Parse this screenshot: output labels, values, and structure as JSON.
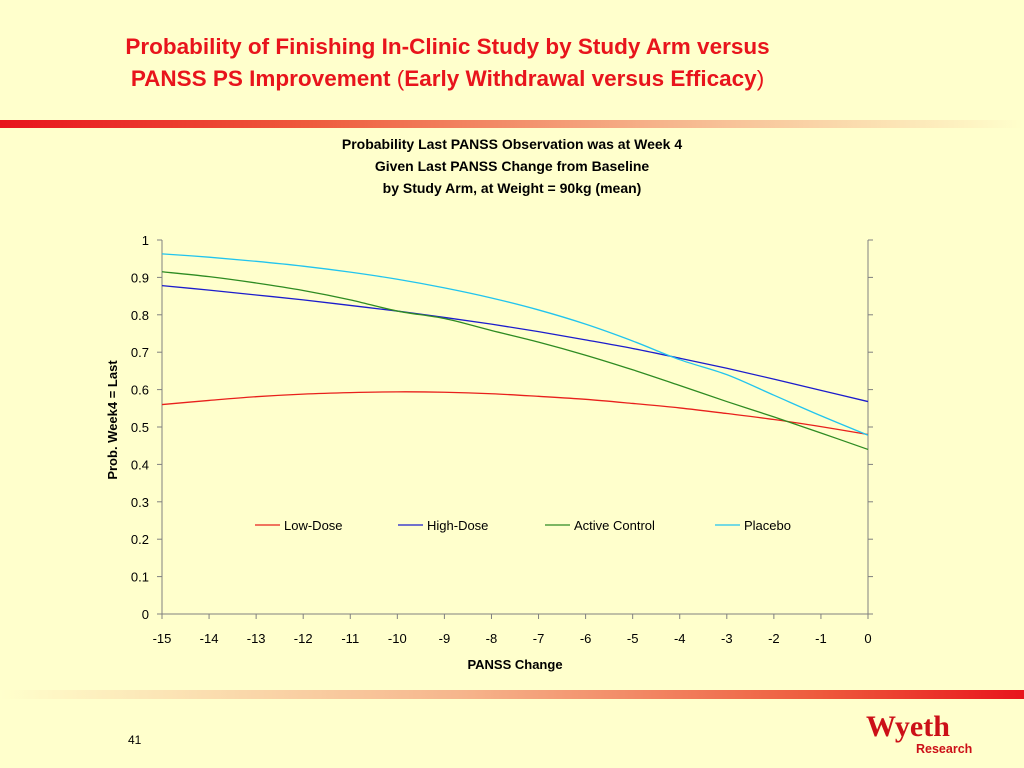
{
  "slide": {
    "title_line1": "Probability of Finishing In-Clinic Study by Study Arm versus",
    "title_line2_main": "PANSS PS Improvement",
    "title_line2_open": "(",
    "title_line2_paren": "Early Withdrawal versus Efficacy",
    "title_line2_close": ")",
    "page_number": "41",
    "logo_text": "Wyeth",
    "logo_subtext": "Research",
    "colors": {
      "title": "#E8141C",
      "background": "#FFFFCC",
      "logo": "#CC1018"
    }
  },
  "chart_data": {
    "type": "line",
    "title_lines": [
      "Probability Last PANSS Observation was at Week 4",
      "Given Last PANSS Change from Baseline",
      "by Study Arm, at Weight = 90kg (mean)"
    ],
    "xlabel": "PANSS Change",
    "ylabel": "Prob. Week4 = Last",
    "xlim": [
      -15,
      0
    ],
    "ylim": [
      0,
      1
    ],
    "x_ticks": [
      -15,
      -14,
      -13,
      -12,
      -11,
      -10,
      -9,
      -8,
      -7,
      -6,
      -5,
      -4,
      -3,
      -2,
      -1,
      0
    ],
    "y_ticks": [
      0,
      0.1,
      0.2,
      0.3,
      0.4,
      0.5,
      0.6,
      0.7,
      0.8,
      0.9,
      1
    ],
    "y_tick_labels": [
      "0",
      "0.1",
      "0.2",
      "0.3",
      "0.4",
      "0.5",
      "0.6",
      "0.7",
      "0.8",
      "0.9",
      "1"
    ],
    "x": [
      -15,
      -14,
      -13,
      -12,
      -11,
      -10,
      -9,
      -8,
      -7,
      -6,
      -5,
      -4,
      -3,
      -2,
      -1,
      0
    ],
    "grid": false,
    "legend_position": "inside-lower-center",
    "series": [
      {
        "name": "Low-Dose",
        "color": "#E8201C",
        "values": [
          0.56,
          0.571,
          0.581,
          0.588,
          0.592,
          0.594,
          0.593,
          0.589,
          0.582,
          0.574,
          0.563,
          0.551,
          0.536,
          0.52,
          0.501,
          0.48
        ]
      },
      {
        "name": "High-Dose",
        "color": "#1C1CCC",
        "values": [
          0.878,
          0.866,
          0.853,
          0.84,
          0.825,
          0.81,
          0.793,
          0.775,
          0.755,
          0.733,
          0.71,
          0.684,
          0.657,
          0.628,
          0.598,
          0.568
        ]
      },
      {
        "name": "Active Control",
        "color": "#2E8B22",
        "values": [
          0.915,
          0.902,
          0.885,
          0.865,
          0.84,
          0.81,
          0.79,
          0.758,
          0.727,
          0.692,
          0.653,
          0.611,
          0.568,
          0.527,
          0.484,
          0.44
        ]
      },
      {
        "name": "Placebo",
        "color": "#22C4EE",
        "values": [
          0.963,
          0.954,
          0.943,
          0.93,
          0.914,
          0.895,
          0.872,
          0.845,
          0.813,
          0.775,
          0.73,
          0.68,
          0.64,
          0.585,
          0.53,
          0.478
        ]
      }
    ]
  }
}
